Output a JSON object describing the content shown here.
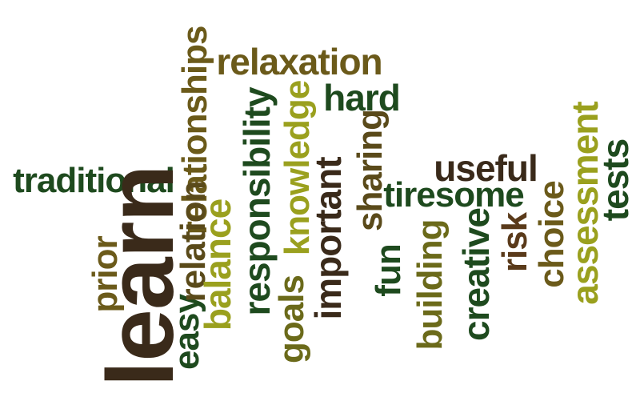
{
  "words": [
    {
      "id": "relaxation",
      "text": "relaxation",
      "color": "#6b5a1a"
    },
    {
      "id": "hard",
      "text": "hard",
      "color": "#1e4a1e"
    },
    {
      "id": "relationships",
      "text": "relationships",
      "color": "#6b5a1a"
    },
    {
      "id": "responsibility",
      "text": "responsibility",
      "color": "#1e4a1e"
    },
    {
      "id": "knowledge",
      "text": "knowledge",
      "color": "#9aa01e"
    },
    {
      "id": "sharing",
      "text": "sharing",
      "color": "#5a4a1a"
    },
    {
      "id": "traditional",
      "text": "traditional",
      "color": "#1e4a1e"
    },
    {
      "id": "useful",
      "text": "useful",
      "color": "#3a2a1a"
    },
    {
      "id": "tiresome",
      "text": "tiresome",
      "color": "#1e4a1e"
    },
    {
      "id": "assessment",
      "text": "assessment",
      "color": "#9aa01e"
    },
    {
      "id": "tests",
      "text": "tests",
      "color": "#1e4a1e"
    },
    {
      "id": "learn",
      "text": "learn",
      "color": "#3a2a1a"
    },
    {
      "id": "prior",
      "text": "prior",
      "color": "#6b5a1a"
    },
    {
      "id": "easy",
      "text": "easy",
      "color": "#1e4a1e"
    },
    {
      "id": "relation",
      "text": "relation",
      "color": "#5a4a1a"
    },
    {
      "id": "balance",
      "text": "balance",
      "color": "#9aa01e"
    },
    {
      "id": "goals",
      "text": "goals",
      "color": "#6b6a1a"
    },
    {
      "id": "important",
      "text": "important",
      "color": "#3a2a1a"
    },
    {
      "id": "fun",
      "text": "fun",
      "color": "#1e4a1e"
    },
    {
      "id": "building",
      "text": "building",
      "color": "#6b6a1a"
    },
    {
      "id": "creative",
      "text": "creative",
      "color": "#1e4a1e"
    },
    {
      "id": "risk",
      "text": "risk",
      "color": "#5a3a1a"
    },
    {
      "id": "choice",
      "text": "choice",
      "color": "#6b5a1a"
    }
  ]
}
